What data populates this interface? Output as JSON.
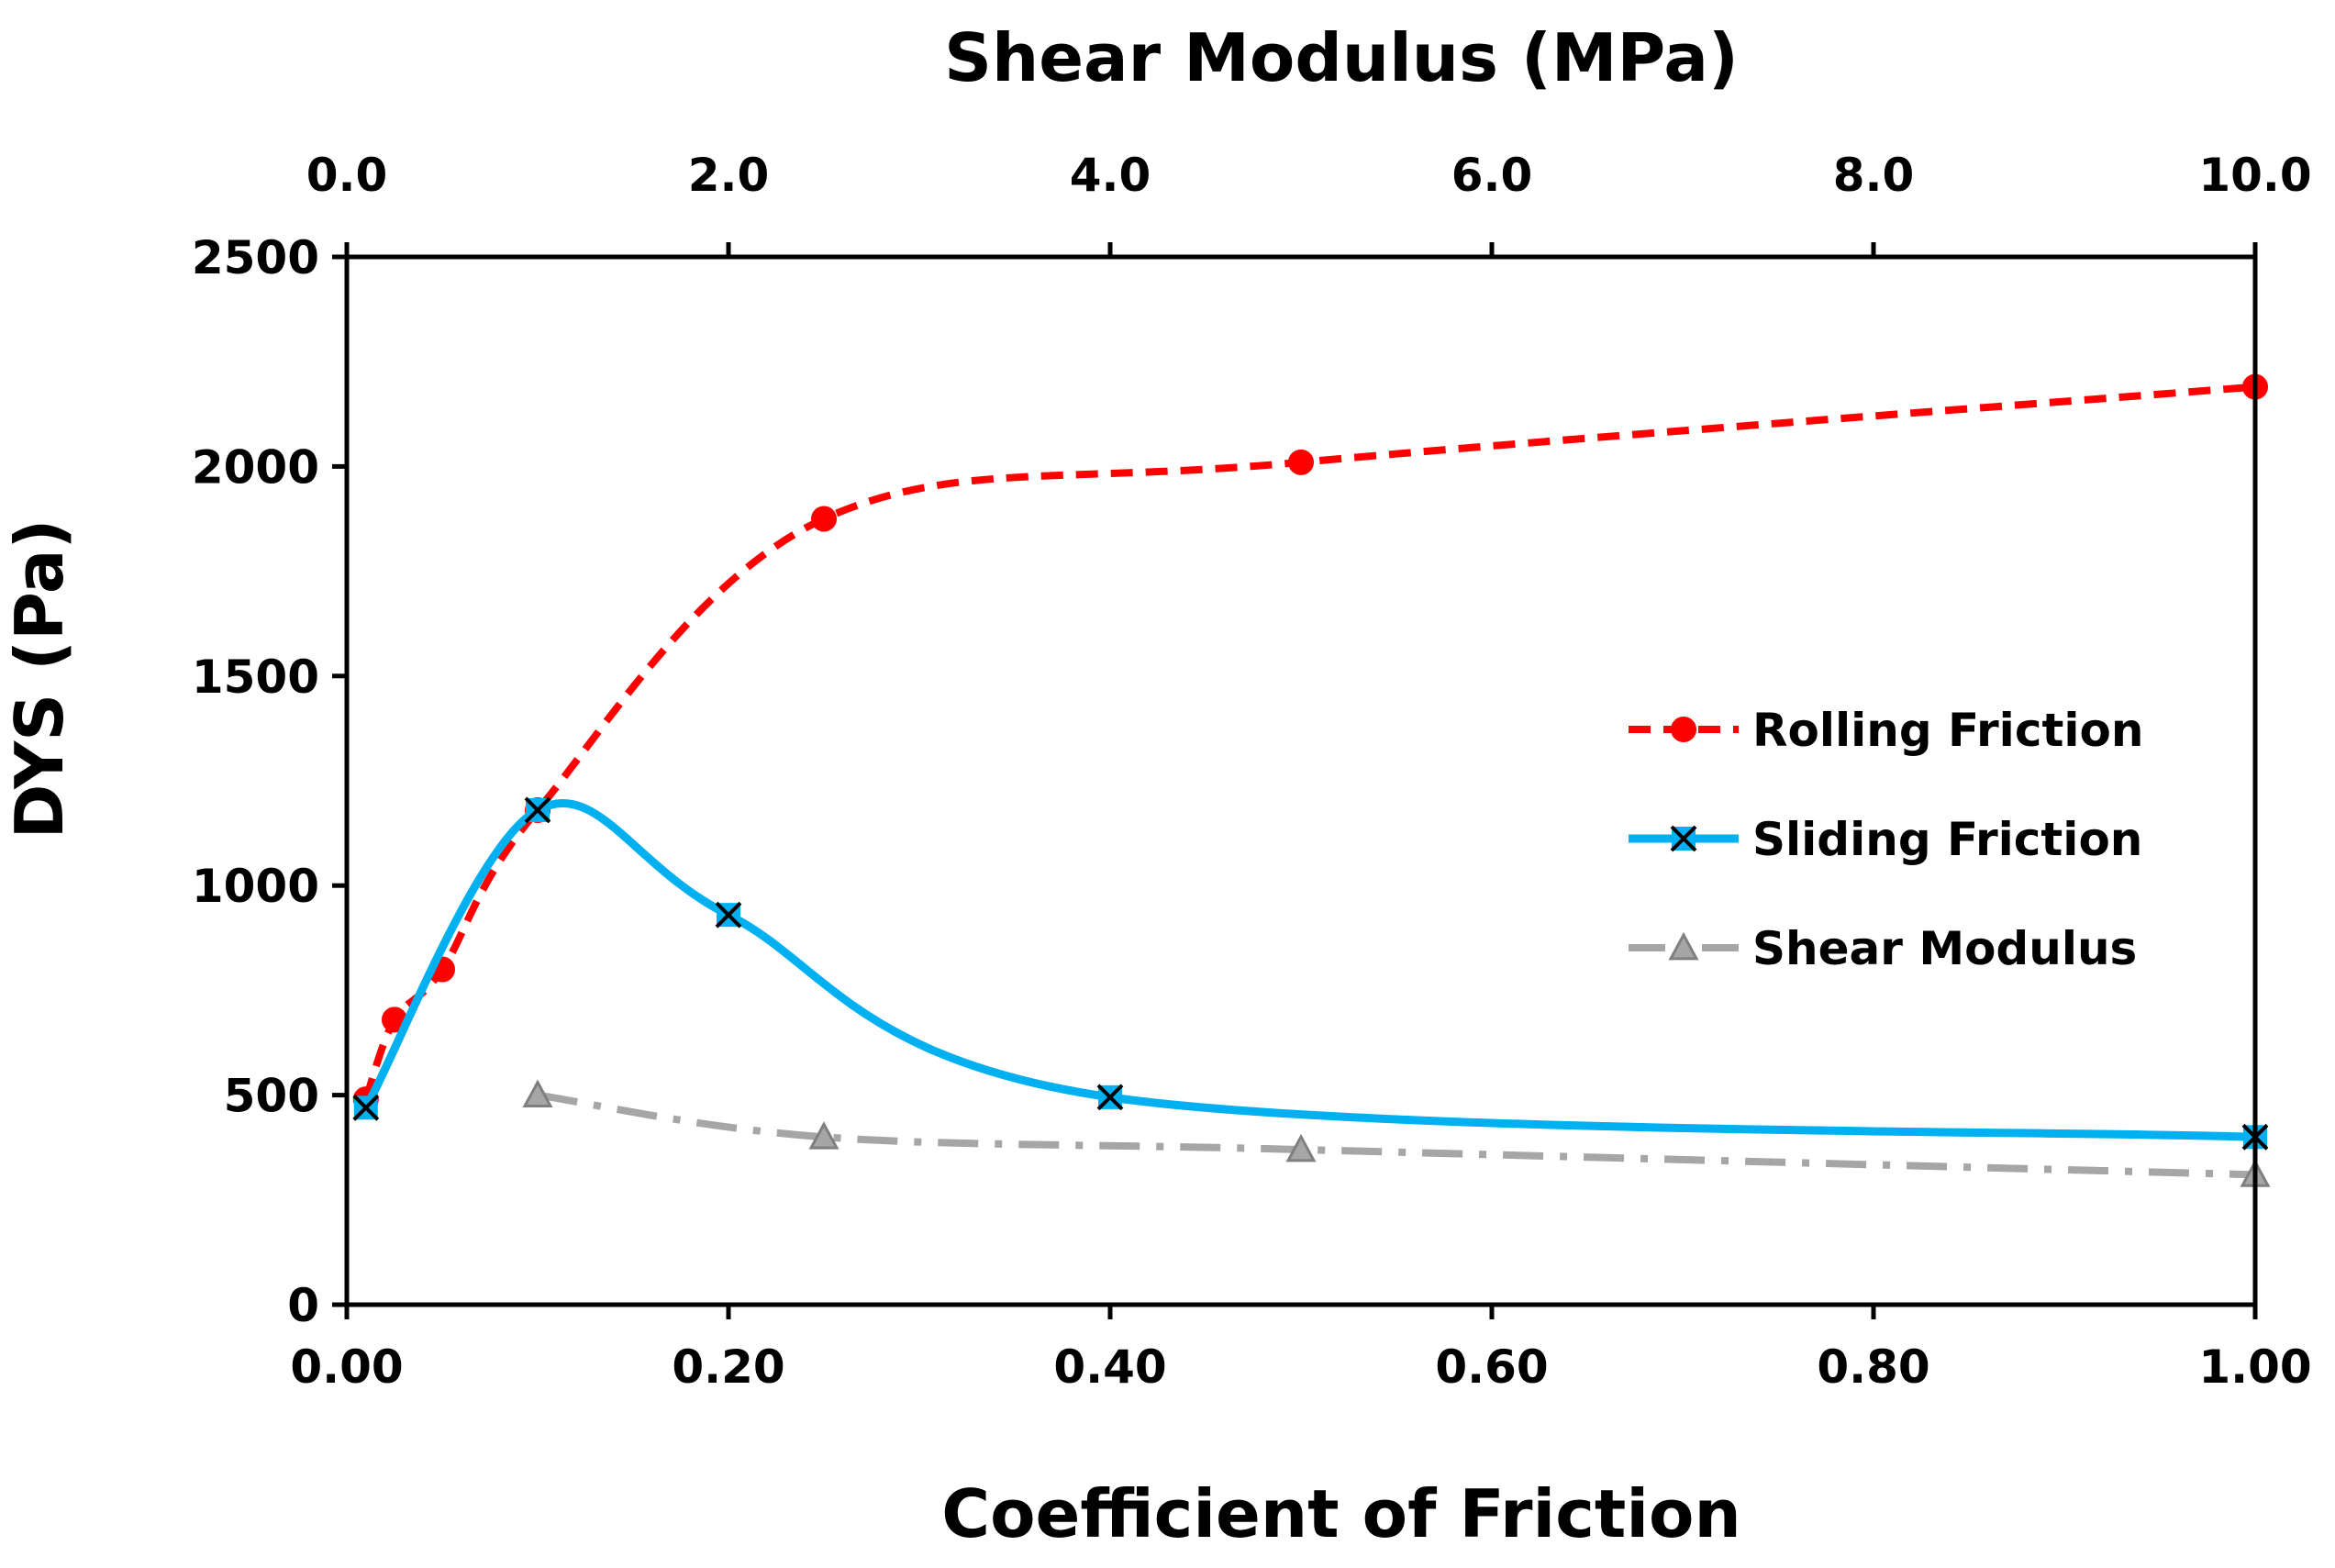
{
  "chart_data": {
    "type": "line",
    "title": "",
    "xlabel": "Coefficient of Friction",
    "x2label": "Shear Modulus (MPa)",
    "ylabel": "DYS (Pa)",
    "xlim": [
      0,
      1
    ],
    "x2lim": [
      0,
      10
    ],
    "ylim": [
      0,
      2500
    ],
    "x_ticks": [
      0,
      0.2,
      0.4,
      0.6,
      0.8,
      1.0
    ],
    "x_tick_labels": [
      "0.00",
      "0.20",
      "0.40",
      "0.60",
      "0.80",
      "1.00"
    ],
    "x2_ticks": [
      0,
      2,
      4,
      6,
      8,
      10
    ],
    "x2_tick_labels": [
      "0.0",
      "2.0",
      "4.0",
      "6.0",
      "8.0",
      "10.0"
    ],
    "y_ticks": [
      0,
      500,
      1000,
      1500,
      2000,
      2500
    ],
    "y_tick_labels": [
      "0",
      "500",
      "1000",
      "1500",
      "2000",
      "2500"
    ],
    "grid": false,
    "legend_position": "right",
    "series": [
      {
        "name": "Rolling Friction",
        "axis": "bottom",
        "color": "#ff0000",
        "line_style": "dashed",
        "marker": "circle",
        "x": [
          0.01,
          0.025,
          0.05,
          0.1,
          0.25,
          0.5,
          1.0
        ],
        "y": [
          490,
          680,
          800,
          1180,
          1875,
          2010,
          2190
        ]
      },
      {
        "name": "Sliding Friction",
        "axis": "bottom",
        "color": "#00b0f0",
        "line_style": "solid",
        "marker": "x-square",
        "x": [
          0.01,
          0.1,
          0.2,
          0.4,
          1.0
        ],
        "y": [
          470,
          1180,
          930,
          495,
          400
        ]
      },
      {
        "name": "Shear Modulus",
        "axis": "top",
        "color": "#a6a6a6",
        "line_style": "dash-dot",
        "marker": "triangle",
        "x": [
          1,
          2.5,
          5,
          10
        ],
        "y": [
          500,
          400,
          370,
          310
        ]
      }
    ]
  }
}
